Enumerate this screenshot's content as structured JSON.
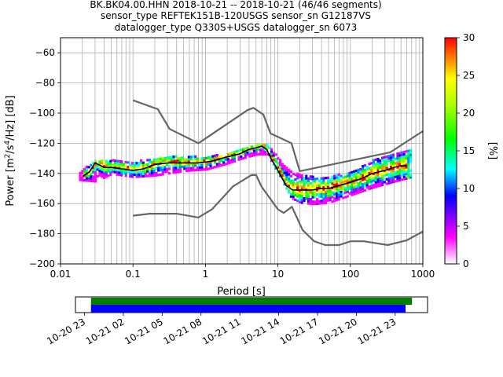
{
  "title_lines": [
    "BK.BK04.00.HHN   2018-10-21 -- 2018-10-21  (46/46 segments)",
    "sensor_type REFTEK151B-120USGS sensor_sn G12187VS",
    "datalogger_type Q330S+USGS datalogger_sn 6073"
  ],
  "chart_data": [
    {
      "type": "heatmap",
      "subtype": "PPSD probabilistic power spectral density",
      "xlabel": "Period [s]",
      "ylabel": "Power [m2/s4/Hz] [dB]",
      "xscale": "log",
      "xlim": [
        0.01,
        1000
      ],
      "ylim": [
        -200,
        -50
      ],
      "xticks": [
        0.01,
        0.1,
        1,
        10,
        100,
        1000
      ],
      "xtick_labels": [
        "0.01",
        "0.1",
        "1",
        "10",
        "100",
        "1000"
      ],
      "yticks": [
        -200,
        -180,
        -160,
        -140,
        -120,
        -100,
        -80,
        -60
      ],
      "grid": true,
      "colorbar": {
        "label": "[%]",
        "min": 0,
        "max": 30,
        "ticks": [
          0,
          5,
          10,
          15,
          20,
          25,
          30
        ],
        "colormap": [
          "#ffffff",
          "#ff00ff",
          "#0000ff",
          "#00ffff",
          "#00ff00",
          "#ffff00",
          "#ff0000"
        ]
      },
      "series": [
        {
          "name": "",
          "style": "nhnm",
          "color": "#666666",
          "x": [
            0.1,
            0.22,
            0.32,
            0.8,
            3.8,
            4.6,
            6.3,
            7.9,
            15.4,
            20,
            354.8,
            1000
          ],
          "y": [
            -91.5,
            -97.4,
            -110.5,
            -120,
            -98,
            -96.5,
            -101,
            -113.5,
            -120,
            -138.5,
            -126,
            -112
          ]
        },
        {
          "name": "",
          "style": "nlnm",
          "color": "#666666",
          "x": [
            0.1,
            0.17,
            0.4,
            0.8,
            1.24,
            2.4,
            4.3,
            5,
            6,
            10,
            12,
            15.6,
            21.9,
            31.6,
            45,
            70,
            101,
            154,
            328,
            600,
            1000
          ],
          "y": [
            -168,
            -166.7,
            -166.7,
            -169.2,
            -163.7,
            -148.6,
            -141.1,
            -141.1,
            -149,
            -163.8,
            -166.2,
            -162.1,
            -177.5,
            -185,
            -187.5,
            -187.5,
            -185,
            -185,
            -187.5,
            -184.4,
            -178.5
          ]
        },
        {
          "name": "",
          "style": "mode",
          "color": "#000000",
          "x": [
            0.02,
            0.025,
            0.03,
            0.04,
            0.05,
            0.07,
            0.1,
            0.14,
            0.2,
            0.3,
            0.5,
            0.8,
            1.2,
            2,
            3,
            4,
            5,
            6,
            7,
            8,
            10,
            13,
            16,
            20,
            25,
            30,
            40,
            50,
            70,
            100,
            150,
            200,
            300,
            400,
            500,
            600
          ],
          "y": [
            -142,
            -139,
            -133,
            -136,
            -136,
            -137,
            -138,
            -137,
            -134,
            -133,
            -133,
            -133,
            -132,
            -129,
            -127,
            -124,
            -123,
            -122,
            -124,
            -130,
            -138,
            -148,
            -151,
            -151,
            -151,
            -151,
            -150,
            -150,
            -148,
            -146,
            -143,
            -140,
            -138,
            -136,
            -135,
            -135
          ]
        }
      ],
      "density_bands": [
        {
          "x": [
            0.018,
            0.03,
            0.05,
            0.1,
            0.2,
            0.5,
            1,
            2,
            3,
            5,
            7,
            10,
            15,
            20,
            30,
            50,
            100,
            200,
            400,
            700
          ],
          "y_low": [
            -145,
            -146,
            -141,
            -143,
            -142,
            -139,
            -138,
            -134,
            -131,
            -128,
            -128,
            -141,
            -157,
            -160,
            -161,
            -160,
            -155,
            -150,
            -146,
            -143
          ],
          "y_high": [
            -139,
            -132,
            -132,
            -133,
            -130,
            -129,
            -130,
            -127,
            -125,
            -121,
            -121,
            -131,
            -140,
            -141,
            -143,
            -142,
            -140,
            -132,
            -127,
            -124
          ]
        }
      ]
    },
    {
      "type": "timeline",
      "subtype": "data coverage",
      "xtick_labels": [
        "10-20 23",
        "10-21 02",
        "10-21 05",
        "10-21 08",
        "10-21 11",
        "10-21 14",
        "10-21 17",
        "10-21 20",
        "10-21 23"
      ],
      "series": [
        {
          "name": "",
          "color": "#008000",
          "start_hour": 0.5,
          "end_hour": 25.3
        },
        {
          "name": "",
          "color": "#0000ff",
          "start_hour": 0.5,
          "end_hour": 24.8
        }
      ],
      "xlim_hours": [
        -0.7,
        26.5
      ]
    }
  ]
}
